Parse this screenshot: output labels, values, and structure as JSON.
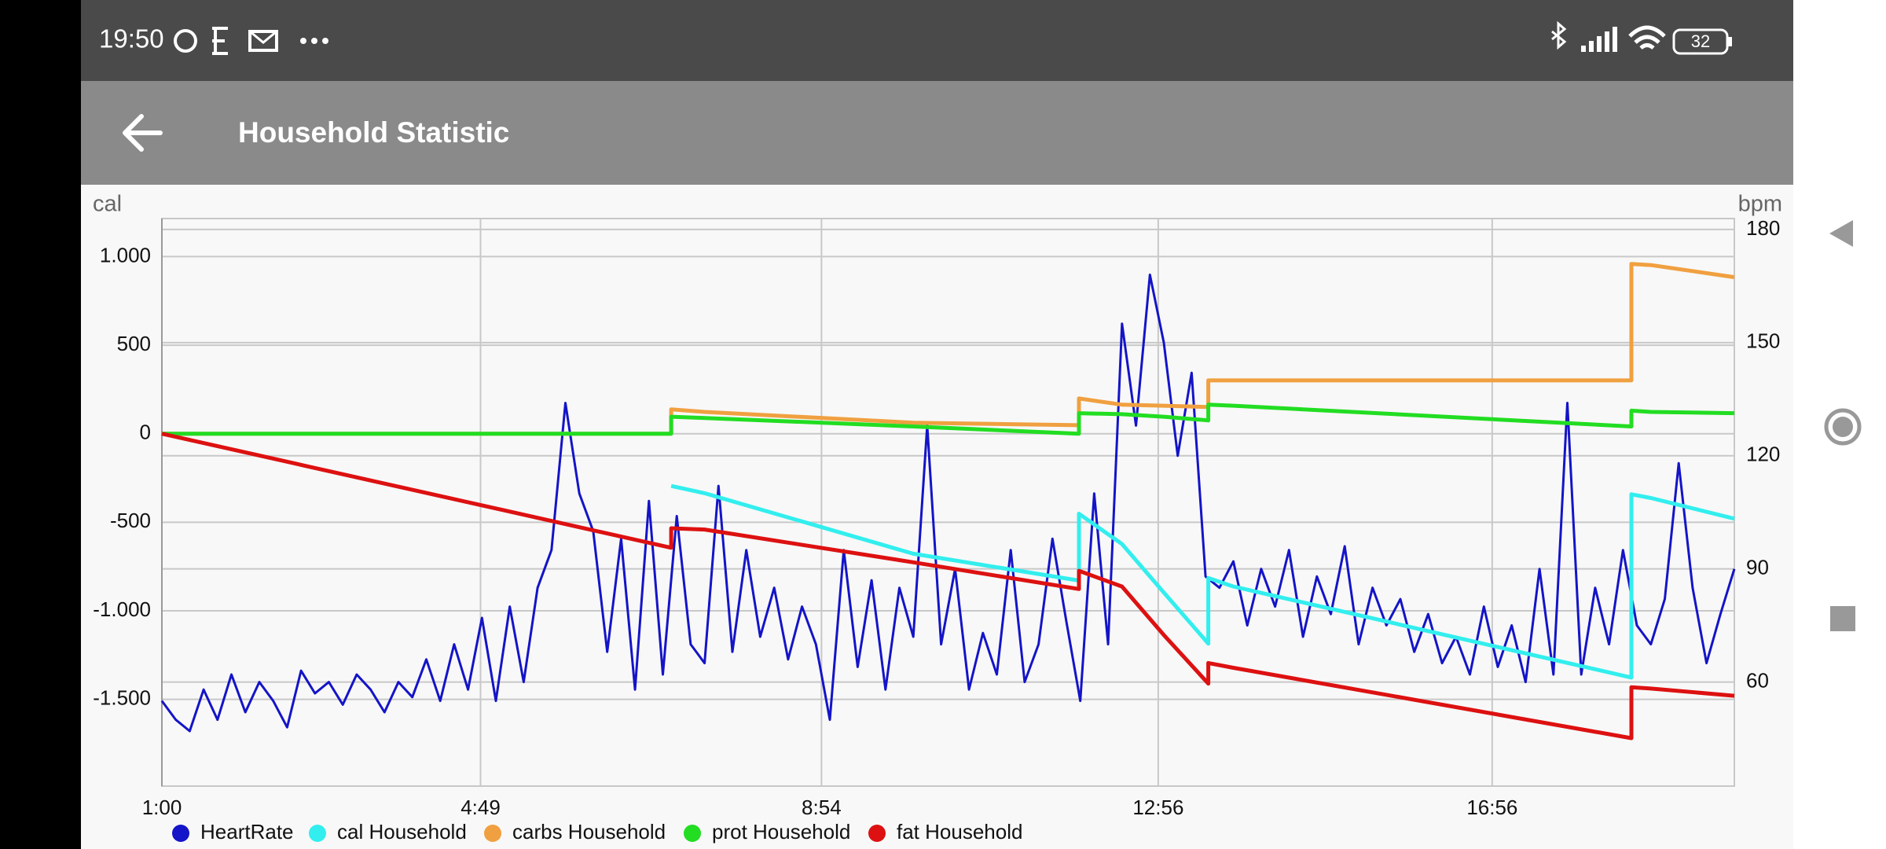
{
  "status_bar": {
    "time": "19:50",
    "battery": "32"
  },
  "app_bar": {
    "title": "Household Statistic"
  },
  "chart_data": {
    "type": "line",
    "y_label": "cal",
    "y2_label": "bpm",
    "xlim": [
      "1:00",
      "19:50"
    ],
    "xticks": [
      "1:00",
      "4:49",
      "8:54",
      "12:56",
      "16:56"
    ],
    "ylim": [
      -1990,
      1215
    ],
    "yticks": [
      {
        "value": 1000,
        "label": "1.000"
      },
      500,
      0,
      -500,
      {
        "value": -1000,
        "label": "-1.000"
      },
      {
        "value": -1500,
        "label": "-1.500"
      }
    ],
    "y2lim": [
      32.4,
      182.9
    ],
    "y2ticks": [
      180,
      150,
      120,
      90,
      60
    ],
    "grid": true,
    "series": [
      {
        "name": "HeartRate",
        "color": "#1414c8",
        "axis": "y2",
        "x": [
          "1:00",
          "1:10",
          "1:20",
          "1:30",
          "1:40",
          "1:50",
          "2:00",
          "2:10",
          "2:20",
          "2:30",
          "2:40",
          "2:50",
          "3:00",
          "3:10",
          "3:20",
          "3:30",
          "3:40",
          "3:50",
          "4:00",
          "4:10",
          "4:20",
          "4:30",
          "4:40",
          "4:50",
          "5:00",
          "5:10",
          "5:20",
          "5:30",
          "5:40",
          "5:50",
          "6:00",
          "6:10",
          "6:20",
          "6:30",
          "6:40",
          "6:50",
          "7:00",
          "7:10",
          "7:20",
          "7:30",
          "7:40",
          "7:50",
          "8:00",
          "8:10",
          "8:20",
          "8:30",
          "8:40",
          "8:50",
          "9:00",
          "9:10",
          "9:20",
          "9:30",
          "9:40",
          "9:50",
          "10:00",
          "10:10",
          "10:20",
          "10:30",
          "10:40",
          "10:50",
          "11:00",
          "11:10",
          "11:20",
          "11:30",
          "11:40",
          "11:50",
          "12:00",
          "12:10",
          "12:20",
          "12:30",
          "12:40",
          "12:50",
          "13:00",
          "13:10",
          "13:20",
          "13:30",
          "13:40",
          "13:50",
          "14:00",
          "14:10",
          "14:20",
          "14:30",
          "14:40",
          "14:50",
          "15:00",
          "15:10",
          "15:20",
          "15:30",
          "15:40",
          "15:50",
          "16:00",
          "16:10",
          "16:20",
          "16:30",
          "16:40",
          "16:50",
          "17:00",
          "17:10",
          "17:20",
          "17:30",
          "17:40",
          "17:50",
          "18:00",
          "18:10",
          "18:20",
          "18:30",
          "18:40",
          "18:50",
          "19:00",
          "19:10",
          "19:20",
          "19:30",
          "19:40",
          "19:50"
        ],
        "values": [
          55,
          50,
          47,
          58,
          50,
          62,
          52,
          60,
          55,
          48,
          63,
          57,
          60,
          54,
          62,
          58,
          52,
          60,
          56,
          66,
          55,
          70,
          58,
          77,
          55,
          80,
          60,
          85,
          95,
          134,
          110,
          100,
          68,
          98,
          58,
          108,
          62,
          104,
          70,
          65,
          112,
          68,
          95,
          72,
          85,
          66,
          80,
          70,
          50,
          95,
          64,
          87,
          58,
          85,
          72,
          128,
          70,
          90,
          58,
          73,
          62,
          95,
          60,
          70,
          98,
          76,
          55,
          110,
          70,
          155,
          128,
          168,
          150,
          120,
          142,
          88,
          85,
          92,
          75,
          90,
          80,
          95,
          72,
          88,
          78,
          96,
          70,
          85,
          75,
          82,
          68,
          78,
          65,
          72,
          62,
          80,
          64,
          75,
          60,
          90,
          62,
          134,
          62,
          85,
          70,
          95,
          75,
          70,
          82,
          118,
          85,
          65,
          78,
          90
        ]
      },
      {
        "name": "cal Household",
        "color": "#33eeee",
        "x": [
          "1:00",
          "7:06",
          "7:06",
          "7:30",
          "10:00",
          "11:59",
          "11:59",
          "12:30",
          "13:00",
          "13:32",
          "13:32",
          "13:50",
          "18:36",
          "18:36",
          "18:50",
          "19:50"
        ],
        "values": [
          null,
          null,
          -295,
          -336,
          -678,
          -829,
          -452,
          -623,
          -897,
          -1185,
          -815,
          -863,
          -1377,
          -342,
          -363,
          -480
        ]
      },
      {
        "name": "carbs Household",
        "color": "#f0a040",
        "x": [
          "1:00",
          "7:06",
          "7:06",
          "7:30",
          "10:00",
          "11:59",
          "11:59",
          "12:30",
          "13:00",
          "13:32",
          "13:32",
          "13:50",
          "18:36",
          "18:36",
          "18:50",
          "19:50"
        ],
        "values": [
          0,
          0,
          137,
          123,
          62,
          48,
          199,
          164,
          158,
          151,
          301,
          301,
          301,
          959,
          952,
          884
        ]
      },
      {
        "name": "prot Household",
        "color": "#22dd22",
        "x": [
          "1:00",
          "7:06",
          "7:06",
          "7:30",
          "10:00",
          "11:59",
          "11:59",
          "12:30",
          "13:00",
          "13:32",
          "13:32",
          "13:50",
          "18:36",
          "18:36",
          "18:50",
          "19:50"
        ],
        "values": [
          0,
          0,
          96,
          89,
          41,
          0,
          116,
          110,
          96,
          75,
          164,
          158,
          41,
          130,
          123,
          116
        ]
      },
      {
        "name": "fat Household",
        "color": "#dd1111",
        "x": [
          "1:00",
          "7:06",
          "7:06",
          "7:30",
          "10:00",
          "11:59",
          "11:59",
          "12:30",
          "13:00",
          "13:32",
          "13:32",
          "13:50",
          "18:36",
          "18:36",
          "18:50",
          "19:50"
        ],
        "values": [
          0,
          -644,
          -534,
          -541,
          -726,
          -877,
          -774,
          -863,
          -1137,
          -1411,
          -1295,
          -1322,
          -1719,
          -1432,
          -1439,
          -1480
        ]
      }
    ]
  }
}
